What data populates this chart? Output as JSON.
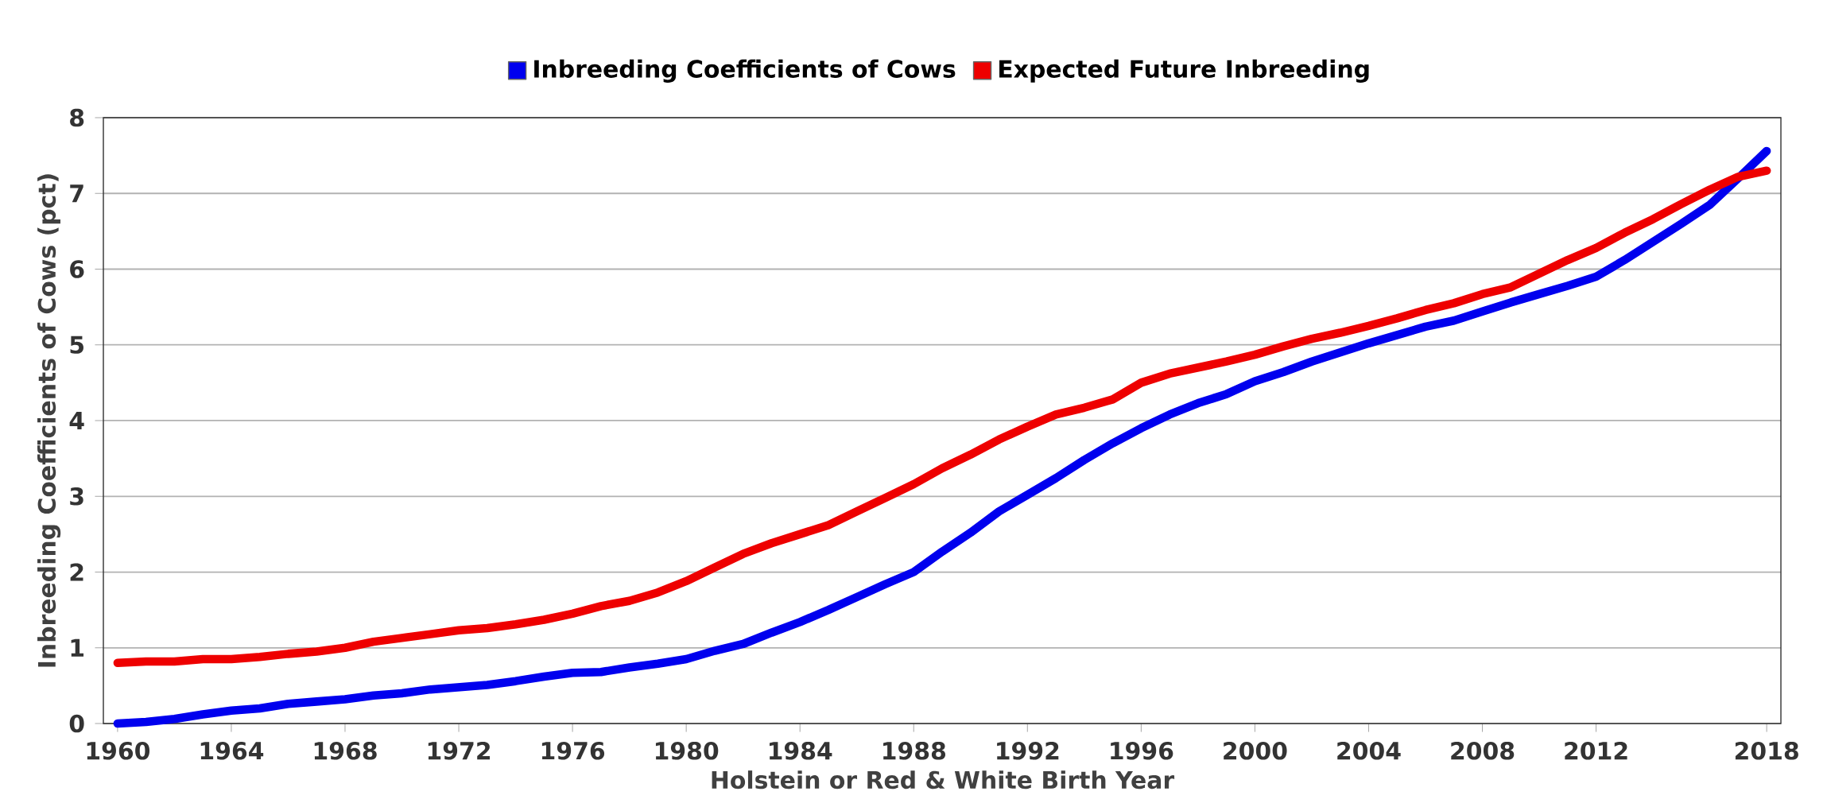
{
  "chart_data": {
    "type": "line",
    "xlabel": "Holstein or Red & White Birth Year",
    "ylabel": "Inbreeding Coefficients of Cows (pct)",
    "x": [
      1960,
      1961,
      1962,
      1963,
      1964,
      1965,
      1966,
      1967,
      1968,
      1969,
      1970,
      1971,
      1972,
      1973,
      1974,
      1975,
      1976,
      1977,
      1978,
      1979,
      1980,
      1981,
      1982,
      1983,
      1984,
      1985,
      1986,
      1987,
      1988,
      1989,
      1990,
      1991,
      1992,
      1993,
      1994,
      1995,
      1996,
      1997,
      1998,
      1999,
      2000,
      2001,
      2002,
      2003,
      2004,
      2005,
      2006,
      2007,
      2008,
      2009,
      2010,
      2011,
      2012,
      2013,
      2014,
      2015,
      2016,
      2017,
      2018
    ],
    "series": [
      {
        "name": "Inbreeding Coefficients of Cows",
        "color": "#0000ee",
        "values": [
          0.0,
          0.02,
          0.06,
          0.12,
          0.17,
          0.2,
          0.26,
          0.29,
          0.32,
          0.37,
          0.4,
          0.45,
          0.48,
          0.51,
          0.56,
          0.62,
          0.67,
          0.68,
          0.74,
          0.79,
          0.85,
          0.96,
          1.05,
          1.2,
          1.34,
          1.5,
          1.67,
          1.84,
          2.0,
          2.27,
          2.52,
          2.8,
          3.02,
          3.24,
          3.48,
          3.7,
          3.9,
          4.08,
          4.23,
          4.35,
          4.52,
          4.64,
          4.78,
          4.9,
          5.02,
          5.13,
          5.24,
          5.32,
          5.44,
          5.56,
          5.67,
          5.78,
          5.9,
          6.12,
          6.36,
          6.6,
          6.85,
          7.2,
          7.56
        ]
      },
      {
        "name": "Expected Future Inbreeding",
        "color": "#ee0000",
        "values": [
          0.8,
          0.82,
          0.82,
          0.85,
          0.85,
          0.88,
          0.92,
          0.95,
          1.0,
          1.08,
          1.13,
          1.18,
          1.23,
          1.26,
          1.31,
          1.37,
          1.45,
          1.55,
          1.62,
          1.73,
          1.88,
          2.06,
          2.24,
          2.38,
          2.5,
          2.62,
          2.8,
          2.98,
          3.16,
          3.37,
          3.55,
          3.75,
          3.92,
          4.08,
          4.17,
          4.28,
          4.5,
          4.62,
          4.7,
          4.78,
          4.87,
          4.98,
          5.08,
          5.16,
          5.25,
          5.35,
          5.46,
          5.55,
          5.67,
          5.76,
          5.94,
          6.12,
          6.28,
          6.48,
          6.66,
          6.86,
          7.05,
          7.22,
          7.3
        ]
      }
    ],
    "xlim": [
      1959.5,
      2018.5
    ],
    "xticks": [
      1960,
      1964,
      1968,
      1972,
      1976,
      1980,
      1984,
      1988,
      1992,
      1996,
      2000,
      2004,
      2008,
      2012,
      2018
    ],
    "ylim": [
      0,
      8
    ],
    "yticks": [
      0,
      1,
      2,
      3,
      4,
      5,
      6,
      7,
      8
    ],
    "grid": "y",
    "legend": "top",
    "marker": "none",
    "line_style": "solid"
  }
}
